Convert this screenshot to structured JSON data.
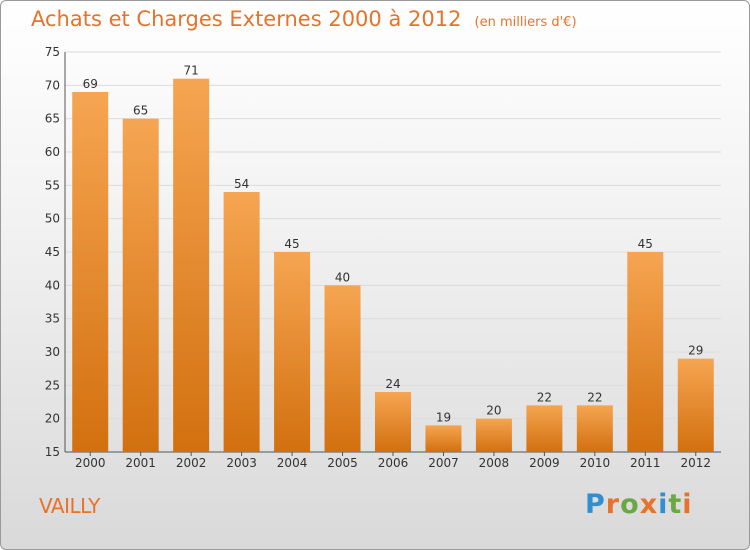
{
  "chart_data": {
    "type": "bar",
    "title": "Achats et Charges Externes 2000 à 2012",
    "subtitle": "(en milliers d'€)",
    "categories": [
      "2000",
      "2001",
      "2002",
      "2003",
      "2004",
      "2005",
      "2006",
      "2007",
      "2008",
      "2009",
      "2010",
      "2011",
      "2012"
    ],
    "values": [
      69,
      65,
      71,
      54,
      45,
      40,
      24,
      19,
      20,
      22,
      22,
      45,
      29
    ],
    "ylim": [
      15,
      75
    ],
    "yticks": [
      15,
      20,
      25,
      30,
      35,
      40,
      45,
      50,
      55,
      60,
      65,
      70,
      75
    ],
    "grid": "horizontal",
    "bar_color_light": "#f6a552",
    "bar_color_dark": "#d2700f",
    "label": "VAILLY"
  },
  "branding": {
    "logo_letters": [
      "P",
      "r",
      "o",
      "x",
      "i",
      "t",
      "i"
    ],
    "logo_colors": [
      "#2f8fd0",
      "#e8722a",
      "#6aa843",
      "#e8722a",
      "#2f8fd0",
      "#6aa843",
      "#e8722a"
    ]
  }
}
